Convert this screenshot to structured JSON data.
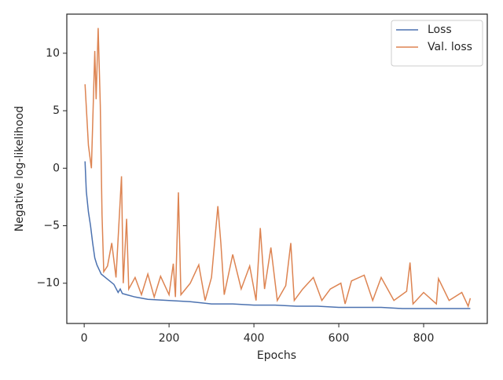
{
  "chart_data": {
    "type": "line",
    "xlabel": "Epochs",
    "ylabel": "Negative log-likelihood",
    "xlim": [
      -41,
      950
    ],
    "ylim": [
      -13.5,
      13.4
    ],
    "xticks": [
      0,
      200,
      400,
      600,
      800
    ],
    "yticks": [
      {
        "value": -10,
        "label": "−10"
      },
      {
        "value": -5,
        "label": "−5"
      },
      0,
      5,
      10
    ],
    "grid": false,
    "legend": "upper right",
    "series": [
      {
        "name": "Loss",
        "color": "#4c72b0",
        "x": [
          2,
          5,
          10,
          15,
          20,
          25,
          30,
          40,
          50,
          60,
          70,
          80,
          85,
          90,
          100,
          120,
          150,
          200,
          250,
          300,
          350,
          400,
          450,
          500,
          550,
          600,
          650,
          700,
          750,
          800,
          850,
          910
        ],
        "values": [
          0.6,
          -2,
          -3.8,
          -5,
          -6.5,
          -7.8,
          -8.4,
          -9.2,
          -9.5,
          -9.8,
          -10.1,
          -10.8,
          -10.5,
          -10.9,
          -11,
          -11.2,
          -11.4,
          -11.5,
          -11.6,
          -11.8,
          -11.8,
          -11.9,
          -11.9,
          -12,
          -12,
          -12.1,
          -12.1,
          -12.1,
          -12.2,
          -12.2,
          -12.2,
          -12.2
        ]
      },
      {
        "name": "Val. loss",
        "color": "#dd8452",
        "x": [
          2,
          10,
          17,
          25,
          28,
          33,
          38,
          42,
          46,
          55,
          65,
          75,
          88,
          92,
          100,
          105,
          120,
          135,
          150,
          165,
          180,
          200,
          210,
          215,
          222,
          228,
          250,
          270,
          285,
          300,
          315,
          322,
          330,
          350,
          370,
          390,
          405,
          415,
          425,
          440,
          455,
          475,
          487,
          495,
          515,
          540,
          560,
          580,
          605,
          615,
          630,
          660,
          680,
          700,
          730,
          760,
          768,
          775,
          800,
          830,
          835,
          860,
          890,
          905,
          910
        ],
        "values": [
          7.3,
          2,
          0,
          10.2,
          6,
          12.2,
          5.5,
          -4,
          -9,
          -8.5,
          -6.5,
          -9.5,
          -0.7,
          -10,
          -4.4,
          -10.5,
          -9.5,
          -11,
          -9.2,
          -11.2,
          -9.4,
          -11,
          -8.3,
          -11.2,
          -2.1,
          -11,
          -10,
          -8.4,
          -11.5,
          -9.5,
          -3.3,
          -6.5,
          -11,
          -7.5,
          -10.5,
          -8.5,
          -11.5,
          -5.2,
          -10.5,
          -6.9,
          -11.5,
          -10.2,
          -6.5,
          -11.5,
          -10.5,
          -9.5,
          -11.5,
          -10.5,
          -10,
          -11.8,
          -9.8,
          -9.3,
          -11.5,
          -9.5,
          -11.5,
          -10.7,
          -8.2,
          -11.8,
          -10.8,
          -11.8,
          -9.6,
          -11.5,
          -10.8,
          -12,
          -11.3
        ]
      }
    ]
  }
}
